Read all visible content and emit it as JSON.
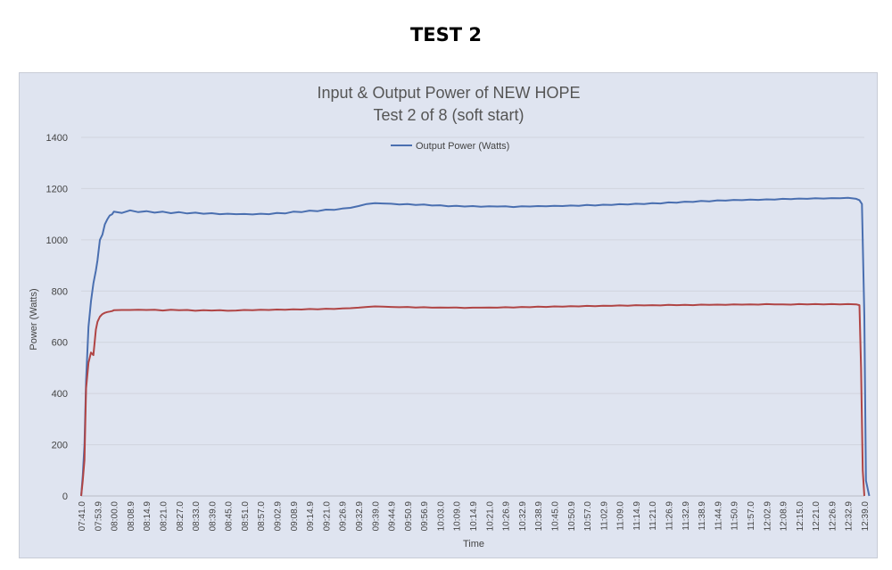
{
  "page": {
    "heading": "TEST 2"
  },
  "chart_data": {
    "type": "line",
    "title": "Input & Output Power of NEW HOPE",
    "subtitle": "Test 2 of 8 (soft start)",
    "xlabel": "Time",
    "ylabel": "Power (Watts)",
    "ylim": [
      0,
      1400
    ],
    "yticks": [
      0,
      200,
      400,
      600,
      800,
      1000,
      1200,
      1400
    ],
    "grid": true,
    "legend_position": "top-center",
    "x_tick_labels": [
      "07:41.0",
      "07:53.9",
      "08:00.0",
      "08:08.9",
      "08:14.9",
      "08:21.0",
      "08:27.0",
      "08:33.0",
      "08:39.0",
      "08:45.0",
      "08:51.0",
      "08:57.0",
      "09:02.9",
      "09:08.9",
      "09:14.9",
      "09:21.0",
      "09:26.9",
      "09:32.9",
      "09:39.0",
      "09:44.9",
      "09:50.9",
      "09:56.9",
      "10:03.0",
      "10:09.0",
      "10:14.9",
      "10:21.0",
      "10:26.9",
      "10:32.9",
      "10:38.9",
      "10:45.0",
      "10:50.9",
      "10:57.0",
      "11:02.9",
      "11:09.0",
      "11:14.9",
      "11:21.0",
      "11:26.9",
      "11:32.9",
      "11:38.9",
      "11:44.9",
      "11:50.9",
      "11:57.0",
      "12:02.9",
      "12:08.9",
      "12:15.0",
      "12:21.0",
      "12:26.9",
      "12:32.9",
      "12:39.0"
    ],
    "series": [
      {
        "name": "Output Power (Watts)",
        "color": "#4a6fb0",
        "x": [
          0,
          0.1,
          0.2,
          0.3,
          0.45,
          0.6,
          0.75,
          0.9,
          1.0,
          1.15,
          1.3,
          1.45,
          1.6,
          1.75,
          1.9,
          2,
          2.5,
          3,
          3.5,
          4,
          4.5,
          5,
          5.5,
          6,
          6.5,
          7,
          7.5,
          8,
          8.5,
          9,
          9.5,
          10,
          10.5,
          11,
          11.5,
          12,
          12.5,
          13,
          13.5,
          14,
          14.5,
          15,
          15.5,
          16,
          16.5,
          17,
          17.5,
          18,
          18.5,
          19,
          19.5,
          20,
          20.5,
          21,
          21.5,
          22,
          22.5,
          23,
          23.5,
          24,
          24.5,
          25,
          25.5,
          26,
          26.5,
          27,
          27.5,
          28,
          28.5,
          29,
          29.5,
          30,
          30.5,
          31,
          31.5,
          32,
          32.5,
          33,
          33.5,
          34,
          34.5,
          35,
          35.5,
          36,
          36.5,
          37,
          37.5,
          38,
          38.5,
          39,
          39.5,
          40,
          40.5,
          41,
          41.5,
          42,
          42.5,
          43,
          43.5,
          44,
          44.5,
          45,
          45.5,
          46,
          46.5,
          47,
          47.5,
          47.7,
          47.85,
          48.0,
          48.1,
          48.3
        ],
        "values": [
          0,
          80,
          200,
          450,
          660,
          760,
          830,
          880,
          920,
          1000,
          1020,
          1060,
          1080,
          1095,
          1100,
          1110,
          1105,
          1115,
          1108,
          1112,
          1106,
          1110,
          1104,
          1108,
          1103,
          1106,
          1102,
          1104,
          1100,
          1102,
          1100,
          1101,
          1099,
          1102,
          1100,
          1105,
          1103,
          1110,
          1108,
          1114,
          1112,
          1118,
          1117,
          1122,
          1125,
          1132,
          1140,
          1143,
          1142,
          1141,
          1138,
          1140,
          1136,
          1138,
          1134,
          1135,
          1131,
          1133,
          1130,
          1132,
          1129,
          1131,
          1130,
          1131,
          1128,
          1131,
          1130,
          1132,
          1131,
          1133,
          1132,
          1134,
          1133,
          1136,
          1134,
          1137,
          1136,
          1139,
          1138,
          1141,
          1140,
          1143,
          1142,
          1146,
          1145,
          1149,
          1148,
          1152,
          1150,
          1154,
          1153,
          1156,
          1155,
          1157,
          1156,
          1158,
          1157,
          1160,
          1159,
          1161,
          1160,
          1162,
          1161,
          1163,
          1162,
          1164,
          1160,
          1155,
          1140,
          700,
          60,
          0
        ]
      },
      {
        "name": "",
        "color": "#b04545",
        "x": [
          0,
          0.1,
          0.2,
          0.3,
          0.45,
          0.6,
          0.75,
          0.9,
          1.0,
          1.15,
          1.3,
          1.45,
          1.6,
          1.75,
          1.9,
          2,
          2.5,
          3,
          3.5,
          4,
          4.5,
          5,
          5.5,
          6,
          6.5,
          7,
          7.5,
          8,
          8.5,
          9,
          9.5,
          10,
          10.5,
          11,
          11.5,
          12,
          12.5,
          13,
          13.5,
          14,
          14.5,
          15,
          15.5,
          16,
          16.5,
          17,
          17.5,
          18,
          18.5,
          19,
          19.5,
          20,
          20.5,
          21,
          21.5,
          22,
          22.5,
          23,
          23.5,
          24,
          24.5,
          25,
          25.5,
          26,
          26.5,
          27,
          27.5,
          28,
          28.5,
          29,
          29.5,
          30,
          30.5,
          31,
          31.5,
          32,
          32.5,
          33,
          33.5,
          34,
          34.5,
          35,
          35.5,
          36,
          36.5,
          37,
          37.5,
          38,
          38.5,
          39,
          39.5,
          40,
          40.5,
          41,
          41.5,
          42,
          42.5,
          43,
          43.5,
          44,
          44.5,
          45,
          45.5,
          46,
          46.5,
          47,
          47.5,
          47.7,
          47.8,
          47.9,
          48.0
        ],
        "values": [
          0,
          60,
          140,
          420,
          520,
          560,
          550,
          650,
          680,
          700,
          710,
          715,
          718,
          720,
          722,
          725,
          726,
          726,
          727,
          726,
          727,
          724,
          727,
          725,
          726,
          723,
          725,
          724,
          725,
          723,
          724,
          726,
          725,
          727,
          726,
          728,
          727,
          729,
          728,
          730,
          729,
          731,
          730,
          732,
          733,
          735,
          738,
          740,
          739,
          738,
          737,
          738,
          736,
          737,
          735,
          736,
          735,
          736,
          734,
          735,
          735,
          736,
          735,
          737,
          736,
          738,
          737,
          739,
          738,
          740,
          739,
          741,
          740,
          742,
          741,
          743,
          742,
          744,
          743,
          745,
          744,
          745,
          744,
          746,
          745,
          746,
          745,
          747,
          746,
          747,
          746,
          748,
          747,
          748,
          747,
          749,
          748,
          748,
          747,
          749,
          748,
          749,
          748,
          749,
          748,
          749,
          748,
          745,
          500,
          100,
          0
        ]
      }
    ]
  }
}
